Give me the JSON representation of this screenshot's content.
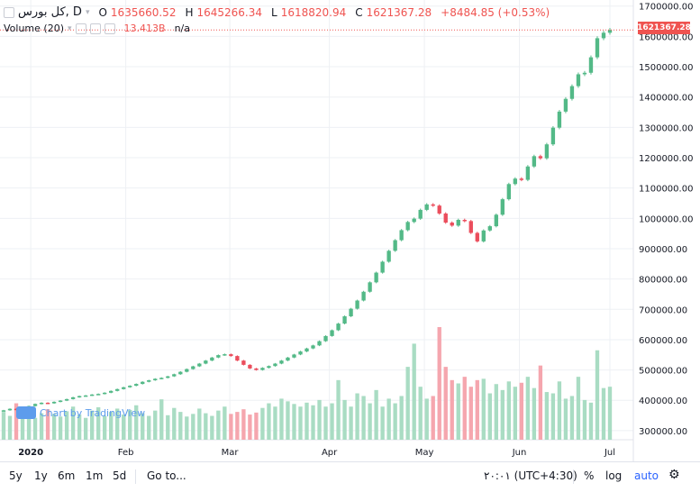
{
  "legend": {
    "symbol": "کل بورس, D",
    "open_label": "O",
    "open": "1635660.52",
    "high_label": "H",
    "high": "1645266.34",
    "low_label": "L",
    "low": "1618820.94",
    "close_label": "C",
    "close": "1621367.28",
    "change": "+8484.85 (+0.53%)"
  },
  "volume_legend": {
    "label": "Volume (20)",
    "value": "13.413B",
    "ma": "n/a"
  },
  "attribution": "Chart by TradingView",
  "last_price_label": "1621367.28",
  "toolbar": {
    "ranges": [
      "5y",
      "1y",
      "6m",
      "1m",
      "5d"
    ],
    "goto": "Go to...",
    "time": "۲۰:۰۱ (UTC+4:30)",
    "percent": "%",
    "log": "log",
    "auto": "auto"
  },
  "colors": {
    "up": "#53b987",
    "down": "#eb4d5c",
    "vol_up": "#a9dcc3",
    "vol_down": "#f5a6ae",
    "grid": "#eef0f4"
  },
  "chart_data": {
    "type": "candlestick",
    "x_ticks": [
      "2020",
      "Feb",
      "Mar",
      "Apr",
      "May",
      "Jun",
      "Jul"
    ],
    "y_ticks": [
      300000,
      400000,
      500000,
      600000,
      700000,
      800000,
      900000,
      1000000,
      1100000,
      1200000,
      1300000,
      1400000,
      1500000,
      1600000,
      1700000
    ],
    "y_tick_labels": [
      "300000.00",
      "400000.00",
      "500000.00",
      "600000.00",
      "700000.00",
      "800000.00",
      "900000.00",
      "1000000.00",
      "1100000.00",
      "1200000.00",
      "1300000.00",
      "1400000.00",
      "1500000.00",
      "1600000.00",
      "1700000.00"
    ],
    "ylim": [
      270000,
      1720000
    ],
    "last_close": 1621367.28,
    "closes": [
      367000,
      372000,
      369000,
      376000,
      381000,
      388000,
      392000,
      390000,
      395000,
      399000,
      404000,
      410000,
      414000,
      416000,
      419000,
      421000,
      425000,
      431000,
      437000,
      443000,
      448000,
      454000,
      461000,
      466000,
      471000,
      474000,
      479000,
      486000,
      494000,
      503000,
      512000,
      521000,
      531000,
      541000,
      549000,
      552000,
      546000,
      531000,
      517000,
      505000,
      500000,
      507000,
      513000,
      521000,
      531000,
      541000,
      551000,
      561000,
      571000,
      581000,
      595000,
      612000,
      631000,
      653000,
      677000,
      702000,
      729000,
      758000,
      789000,
      821000,
      857000,
      893000,
      928000,
      961000,
      988000,
      999000,
      1028000,
      1046000,
      1042000,
      1016000,
      986000,
      976000,
      995000,
      991000,
      952000,
      924000,
      960000,
      974000,
      1012000,
      1063000,
      1113000,
      1131000,
      1127000,
      1171000,
      1205000,
      1198000,
      1244000,
      1299000,
      1352000,
      1394000,
      1436000,
      1475000,
      1480000,
      1531000,
      1594000,
      1612000,
      1621367
    ],
    "volumes_rel": [
      0.42,
      0.36,
      0.55,
      0.38,
      0.42,
      0.33,
      0.4,
      0.46,
      0.39,
      0.35,
      0.43,
      0.5,
      0.38,
      0.33,
      0.44,
      0.49,
      0.36,
      0.42,
      0.47,
      0.38,
      0.45,
      0.52,
      0.4,
      0.36,
      0.44,
      0.61,
      0.37,
      0.48,
      0.42,
      0.35,
      0.39,
      0.47,
      0.4,
      0.36,
      0.44,
      0.5,
      0.39,
      0.42,
      0.46,
      0.38,
      0.41,
      0.48,
      0.55,
      0.5,
      0.62,
      0.58,
      0.54,
      0.5,
      0.56,
      0.52,
      0.6,
      0.5,
      0.55,
      0.9,
      0.6,
      0.5,
      0.7,
      0.66,
      0.55,
      0.75,
      0.5,
      0.62,
      0.55,
      0.66,
      1.1,
      1.45,
      0.8,
      0.62,
      0.66,
      1.7,
      1.1,
      0.9,
      0.85,
      0.95,
      0.8,
      0.9,
      0.92,
      0.7,
      0.84,
      0.75,
      0.88,
      0.8,
      0.86,
      0.95,
      0.78,
      1.12,
      0.72,
      0.7,
      0.88,
      0.62,
      0.66,
      0.95,
      0.6,
      0.56,
      1.35,
      0.78,
      0.8
    ]
  }
}
